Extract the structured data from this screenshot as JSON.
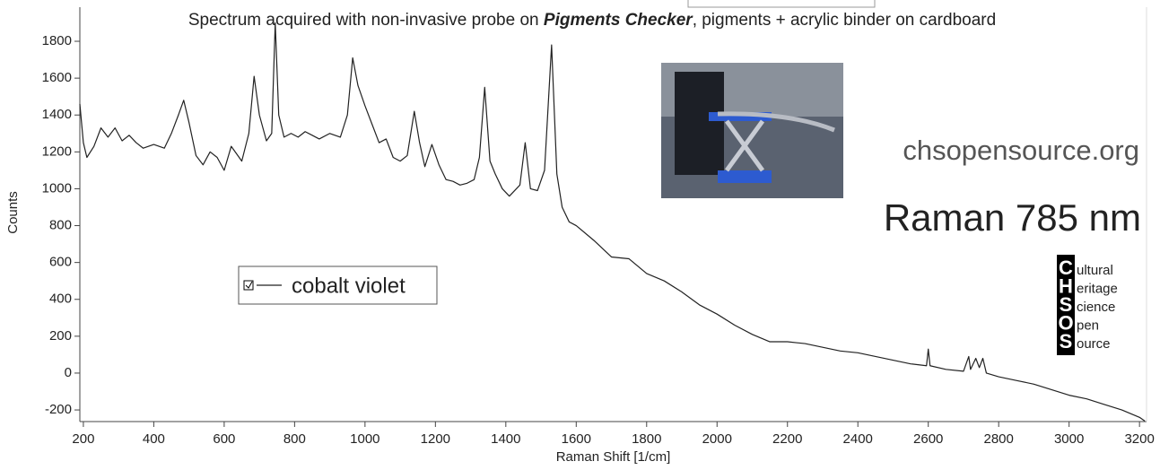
{
  "chart_data": {
    "type": "line",
    "title_parts": [
      "Spectrum acquired with non-invasive probe on ",
      "Pigments Checker",
      ", pigments + acrylic binder on cardboard"
    ],
    "x_label": "Raman Shift [1/cm]",
    "y_label": "Counts",
    "annotations": [
      "chsopensource.org",
      "Raman 785 nm"
    ],
    "logo": [
      {
        "letter": "C",
        "rest": "ultural"
      },
      {
        "letter": "H",
        "rest": "eritage"
      },
      {
        "letter": "S",
        "rest": "cience"
      },
      {
        "letter": "O",
        "rest": "pen"
      },
      {
        "letter": "S",
        "rest": "ource"
      }
    ],
    "x": [
      190,
      200,
      210,
      230,
      250,
      270,
      290,
      310,
      330,
      350,
      370,
      400,
      430,
      450,
      470,
      485,
      500,
      520,
      540,
      560,
      580,
      600,
      620,
      650,
      670,
      685,
      700,
      720,
      735,
      745,
      755,
      770,
      790,
      810,
      830,
      850,
      870,
      900,
      930,
      950,
      965,
      980,
      1000,
      1020,
      1040,
      1060,
      1080,
      1100,
      1120,
      1140,
      1155,
      1170,
      1190,
      1210,
      1230,
      1250,
      1270,
      1290,
      1310,
      1325,
      1340,
      1355,
      1370,
      1390,
      1410,
      1430,
      1440,
      1455,
      1470,
      1490,
      1510,
      1530,
      1545,
      1560,
      1580,
      1600,
      1650,
      1700,
      1750,
      1800,
      1850,
      1900,
      1950,
      2000,
      2050,
      2100,
      2150,
      2200,
      2250,
      2300,
      2350,
      2400,
      2450,
      2500,
      2550,
      2595,
      2600,
      2605,
      2650,
      2700,
      2715,
      2720,
      2735,
      2745,
      2755,
      2765,
      2800,
      2850,
      2900,
      2950,
      3000,
      3050,
      3100,
      3150,
      3200,
      3215
    ],
    "series": [
      {
        "name": "cobalt violet",
        "color": "#222222",
        "values": [
          1460,
          1250,
          1170,
          1230,
          1330,
          1280,
          1330,
          1260,
          1290,
          1250,
          1220,
          1240,
          1220,
          1300,
          1400,
          1480,
          1360,
          1180,
          1130,
          1200,
          1170,
          1100,
          1230,
          1150,
          1300,
          1610,
          1400,
          1260,
          1300,
          1900,
          1400,
          1280,
          1300,
          1280,
          1310,
          1290,
          1270,
          1300,
          1280,
          1400,
          1710,
          1560,
          1450,
          1350,
          1250,
          1270,
          1170,
          1150,
          1180,
          1420,
          1250,
          1120,
          1240,
          1130,
          1050,
          1040,
          1020,
          1030,
          1050,
          1170,
          1550,
          1150,
          1080,
          1000,
          960,
          1000,
          1020,
          1250,
          1000,
          990,
          1100,
          1780,
          1080,
          900,
          820,
          800,
          720,
          630,
          620,
          540,
          500,
          440,
          370,
          320,
          260,
          210,
          170,
          170,
          160,
          140,
          120,
          110,
          90,
          70,
          50,
          40,
          130,
          40,
          20,
          10,
          90,
          20,
          80,
          30,
          80,
          0,
          -20,
          -40,
          -60,
          -90,
          -120,
          -140,
          -170,
          -200,
          -240,
          -260
        ]
      }
    ],
    "xlim": [
      190,
      3220
    ],
    "ylim": [
      -263,
      1985
    ],
    "xticks": [
      200,
      400,
      600,
      800,
      1000,
      1200,
      1400,
      1600,
      1800,
      2000,
      2200,
      2400,
      2600,
      2800,
      3000,
      3200
    ],
    "yticks": [
      -200,
      0,
      200,
      400,
      600,
      800,
      1000,
      1200,
      1400,
      1600,
      1800
    ],
    "grid": false
  }
}
